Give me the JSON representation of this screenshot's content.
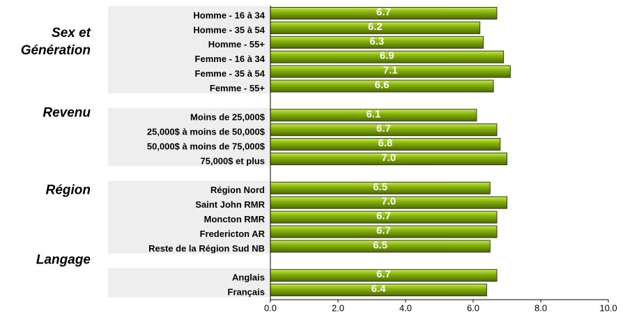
{
  "chart_data": {
    "type": "bar",
    "orientation": "horizontal",
    "color": "#8dba0c",
    "xlim": [
      0,
      10
    ],
    "xticks": [
      {
        "value": 0,
        "label": "0.0"
      },
      {
        "value": 2,
        "label": "2.0"
      },
      {
        "value": 4,
        "label": "4.0"
      },
      {
        "value": 6,
        "label": "6.0"
      },
      {
        "value": 8,
        "label": "8.0"
      },
      {
        "value": 10,
        "label": "10.0"
      }
    ],
    "groups": [
      {
        "label": "Sex et Génération",
        "categories": [
          "Homme - 16 à 34",
          "Homme - 35 à 54",
          "Homme - 55+",
          "Femme - 16 à 34",
          "Femme - 35 à 54",
          "Femme - 55+"
        ],
        "values": [
          6.7,
          6.2,
          6.3,
          6.9,
          7.1,
          6.6
        ],
        "value_labels": [
          "6.7",
          "6.2",
          "6.3",
          "6.9",
          "7.1",
          "6.6"
        ]
      },
      {
        "label": "Revenu",
        "categories": [
          "Moins de 25,000$",
          "25,000$ à moins de 50,000$",
          "50,000$ à moins de 75,000$",
          "75,000$ et plus"
        ],
        "values": [
          6.1,
          6.7,
          6.8,
          7.0
        ],
        "value_labels": [
          "6.1",
          "6.7",
          "6.8",
          "7.0"
        ]
      },
      {
        "label": "Région",
        "categories": [
          "Région Nord",
          "Saint John RMR",
          "Moncton RMR",
          "Fredericton AR",
          "Reste de la Région Sud NB"
        ],
        "values": [
          6.5,
          7.0,
          6.7,
          6.7,
          6.5
        ],
        "value_labels": [
          "6.5",
          "7.0",
          "6.7",
          "6.7",
          "6.5"
        ]
      },
      {
        "label": "Langage",
        "categories": [
          "Anglais",
          "Français"
        ],
        "values": [
          6.7,
          6.4
        ],
        "value_labels": [
          "6.7",
          "6.4"
        ]
      }
    ]
  }
}
